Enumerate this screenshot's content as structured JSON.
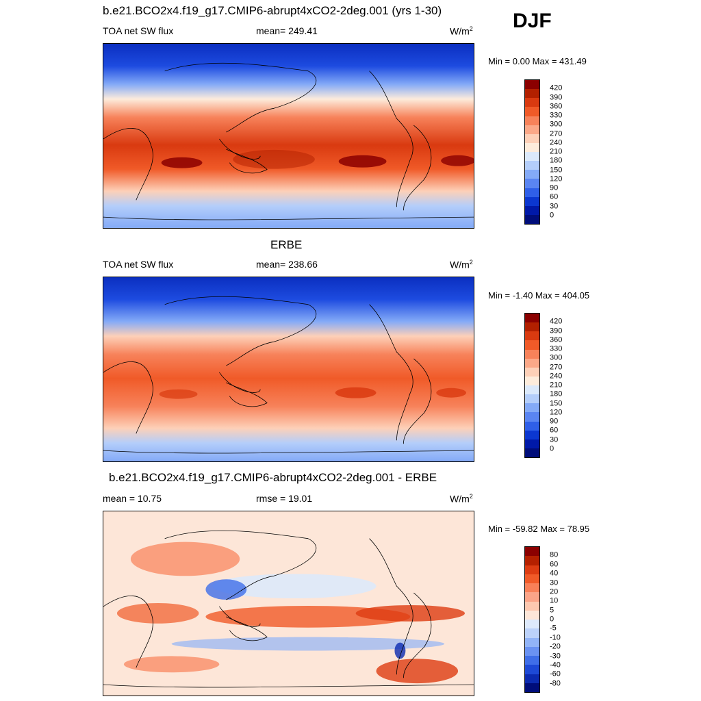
{
  "season": "DJF",
  "panels": [
    {
      "title": "b.e21.BCO2x4.f19_g17.CMIP6-abrupt4xCO2-2deg.001 (yrs 1-30)",
      "left_label": "TOA net SW flux",
      "center_label": "mean= 249.41",
      "units": "W/m",
      "units_sup": "2",
      "minmax": "Min =   0.00 Max = 431.49",
      "colorbar_labels": [
        "420",
        "390",
        "360",
        "330",
        "300",
        "270",
        "240",
        "210",
        "180",
        "150",
        "120",
        "90",
        "60",
        "30",
        "0"
      ]
    },
    {
      "title": "ERBE",
      "left_label": "TOA net SW flux",
      "center_label": "mean= 238.66",
      "units": "W/m",
      "units_sup": "2",
      "minmax": "Min =  -1.40 Max = 404.05",
      "colorbar_labels": [
        "420",
        "390",
        "360",
        "330",
        "300",
        "270",
        "240",
        "210",
        "180",
        "150",
        "120",
        "90",
        "60",
        "30",
        "0"
      ]
    },
    {
      "title": "b.e21.BCO2x4.f19_g17.CMIP6-abrupt4xCO2-2deg.001 - ERBE",
      "left_label": "mean =  10.75",
      "center_label": "rmse =  19.01",
      "units": "W/m",
      "units_sup": "2",
      "minmax": "Min = -59.82 Max =  78.95",
      "colorbar_labels": [
        "80",
        "60",
        "40",
        "30",
        "20",
        "10",
        "5",
        "0",
        "-5",
        "-10",
        "-20",
        "-30",
        "-40",
        "-60",
        "-80"
      ]
    }
  ],
  "colors": {
    "abs_scale": [
      "#8b0000",
      "#b22000",
      "#d93a10",
      "#f05a28",
      "#f7825a",
      "#fba888",
      "#fdd0b8",
      "#fdecdc",
      "#dbe9fb",
      "#b4cefa",
      "#84aaf7",
      "#5a85f2",
      "#2f5fe8",
      "#0b37d0",
      "#0019a8",
      "#000d7a"
    ],
    "diff_scale": [
      "#8b0000",
      "#b52000",
      "#dd3c12",
      "#f05a28",
      "#f88058",
      "#fba488",
      "#fdc8b0",
      "#fde6d8",
      "#dde9fb",
      "#bcd2fa",
      "#92b4f7",
      "#6a92f2",
      "#3f6ee8",
      "#1d49d6",
      "#0b2ab0",
      "#000d7a"
    ]
  }
}
